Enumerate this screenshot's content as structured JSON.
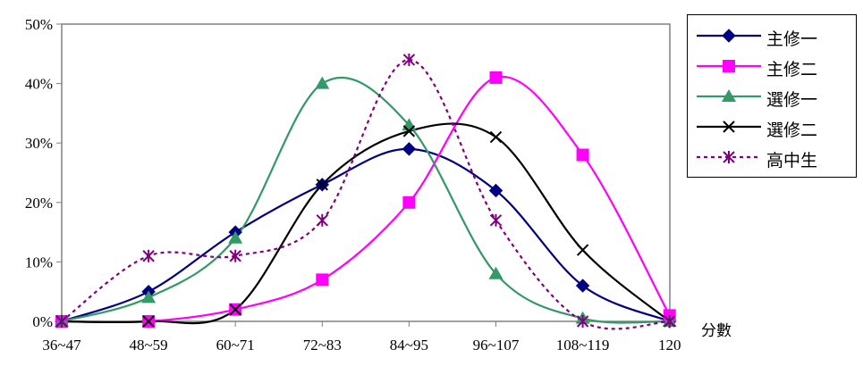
{
  "chart_data": {
    "type": "line",
    "title": "",
    "xlabel": "分數",
    "ylabel": "",
    "categories": [
      "36~47",
      "48~59",
      "60~71",
      "72~83",
      "84~95",
      "96~107",
      "108~119",
      "120"
    ],
    "yticks": [
      "0%",
      "10%",
      "20%",
      "30%",
      "40%",
      "50%"
    ],
    "ylim": [
      0,
      50
    ],
    "grid": false,
    "legend_position": "top-right",
    "series": [
      {
        "name": "主修一",
        "color": "#000080",
        "marker": "diamond",
        "dash": "solid",
        "values": [
          0,
          5,
          15,
          23,
          29,
          22,
          6,
          0
        ]
      },
      {
        "name": "主修二",
        "color": "#FF00FF",
        "marker": "square",
        "dash": "solid",
        "values": [
          0,
          0,
          2,
          7,
          20,
          41,
          28,
          1
        ]
      },
      {
        "name": "選修一",
        "color": "#339966",
        "marker": "triangle",
        "dash": "solid",
        "values": [
          0,
          4,
          14,
          40,
          33,
          8,
          0.5,
          0
        ]
      },
      {
        "name": "選修二",
        "color": "#000000",
        "marker": "x",
        "dash": "solid",
        "values": [
          0,
          0,
          2,
          23,
          32,
          31,
          12,
          0
        ]
      },
      {
        "name": "高中生",
        "color": "#800080",
        "marker": "asterisk",
        "dash": "dotted",
        "values": [
          0,
          11,
          11,
          17,
          44,
          17,
          0,
          0
        ]
      }
    ]
  }
}
